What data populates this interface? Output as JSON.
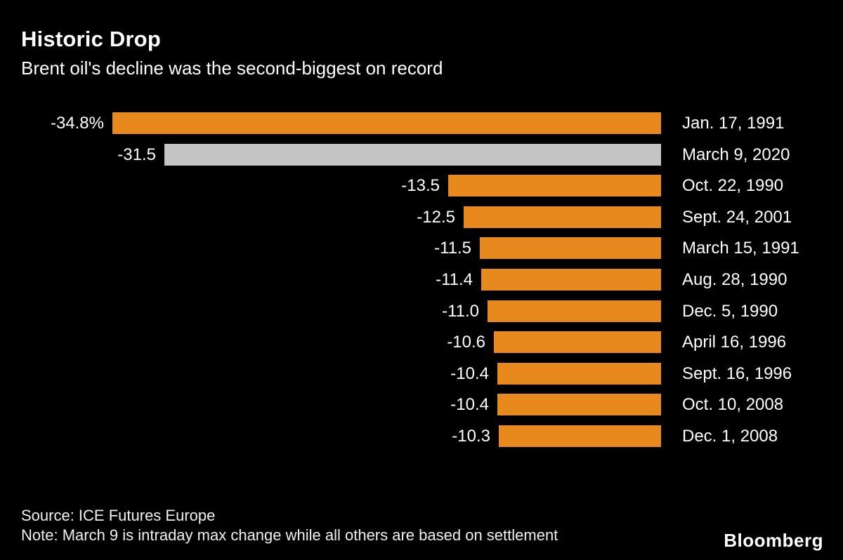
{
  "header": {
    "title": "Historic Drop",
    "subtitle": "Brent oil's decline was the second-biggest on record"
  },
  "chart_data": {
    "type": "bar",
    "orientation": "horizontal",
    "anchor": "right",
    "title": "Historic Drop",
    "subtitle": "Brent oil's decline was the second-biggest on record",
    "xlabel": "",
    "ylabel": "",
    "xlim": [
      0,
      34.8
    ],
    "grid": false,
    "legend": "none",
    "categories": [
      "Jan. 17, 1991",
      "March 9, 2020",
      "Oct. 22, 1990",
      "Sept. 24, 2001",
      "March 15, 1991",
      "Aug. 28, 1990",
      "Dec. 5, 1990",
      "April 16, 1996",
      "Sept. 16, 1996",
      "Oct. 10, 2008",
      "Dec. 1, 2008"
    ],
    "values": [
      -34.8,
      -31.5,
      -13.5,
      -12.5,
      -11.5,
      -11.4,
      -11.0,
      -10.6,
      -10.4,
      -10.4,
      -10.3
    ],
    "value_labels": [
      "-34.8%",
      "-31.5",
      "-13.5",
      "-12.5",
      "-11.5",
      "-11.4",
      "-11.0",
      "-10.6",
      "-10.4",
      "-10.4",
      "-10.3"
    ],
    "bar_color": "#e8891d",
    "highlight_index": 1,
    "highlight_color": "#c4c4c4"
  },
  "footer": {
    "source": "Source: ICE Futures Europe",
    "note": "Note: March 9 is intraday max change while all others are based on settlement",
    "brand": "Bloomberg"
  }
}
